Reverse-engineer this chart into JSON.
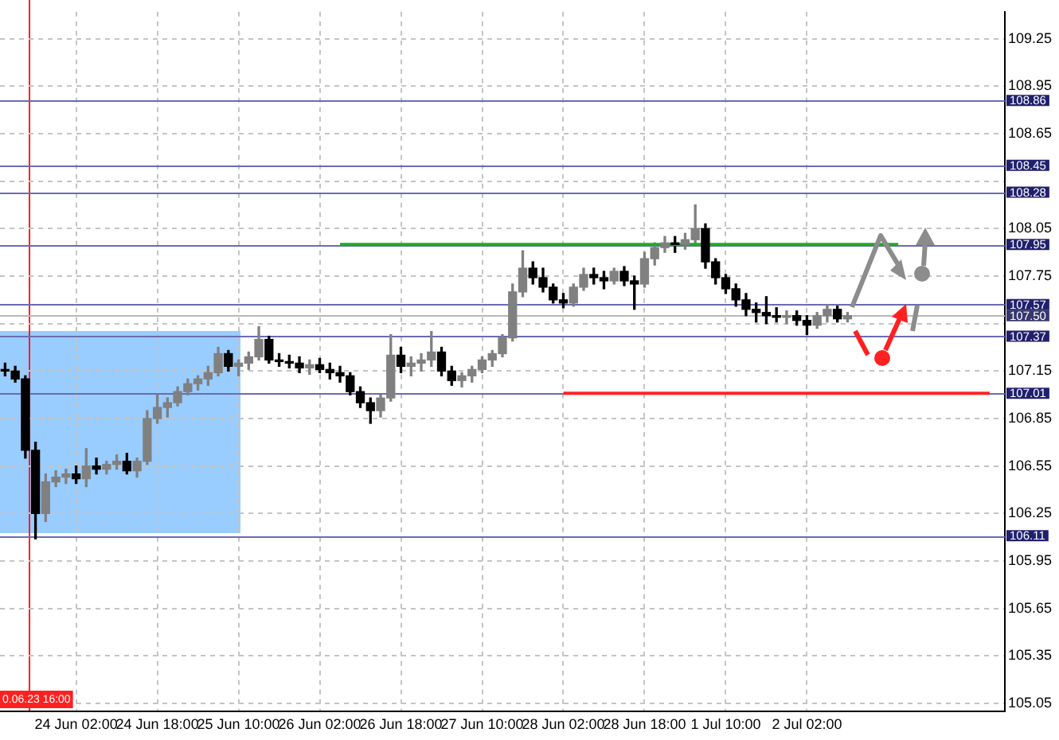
{
  "chart_data": {
    "type": "candlestick",
    "categories": [
      null,
      null,
      null,
      null,
      null,
      null,
      null,
      "24 Jun 02:00",
      null,
      null,
      null,
      null,
      null,
      null,
      null,
      "24 Jun 18:00",
      null,
      null,
      null,
      null,
      null,
      null,
      null,
      "25 Jun 10:00",
      null,
      null,
      null,
      null,
      null,
      null,
      null,
      "26 Jun 02:00",
      null,
      null,
      null,
      null,
      null,
      null,
      null,
      "26 Jun 18:00",
      null,
      null,
      null,
      null,
      null,
      null,
      null,
      "27 Jun 10:00",
      null,
      null,
      null,
      null,
      null,
      null,
      null,
      "28 Jun 02:00",
      null,
      null,
      null,
      null,
      null,
      null,
      null,
      "28 Jun 18:00",
      null,
      null,
      null,
      null,
      null,
      null,
      null,
      "1 Jul 10:00",
      null,
      null,
      null,
      null,
      null,
      null,
      null,
      "2 Jul 02:00",
      null,
      null,
      null,
      null,
      null,
      null,
      null,
      null,
      null,
      null,
      null,
      null,
      null,
      null,
      null,
      null,
      null,
      null,
      null
    ],
    "colors": [
      "#000000",
      "#000000",
      "#000000",
      "#000000",
      "#808080",
      "#808080",
      "#808080",
      "#000000",
      "#808080",
      "#000000",
      "#808080",
      "#808080",
      "#000000",
      "#808080",
      "#808080",
      "#808080",
      "#808080",
      "#808080",
      "#808080",
      "#808080",
      "#808080",
      "#808080",
      "#000000",
      "#808080",
      "#808080",
      "#808080",
      "#000000",
      "#000000",
      "#000000",
      "#000000",
      "#808080",
      "#000000",
      "#000000",
      "#000000",
      "#000000",
      "#000000",
      "#000000",
      "#808080",
      "#808080",
      "#000000",
      "#808080",
      "#808080",
      "#808080",
      "#000000",
      "#000000",
      "#808080",
      "#808080",
      "#808080",
      "#808080",
      "#808080",
      "#808080",
      "#808080",
      "#000000",
      "#000000",
      "#000000",
      "#000000",
      "#808080",
      "#808080",
      "#000000",
      "#000000",
      "#808080",
      "#000000",
      "#000000",
      "#808080",
      "#808080",
      "#808080",
      "#000000",
      "#808080",
      "#808080",
      "#000000",
      "#000000",
      "#000000",
      "#000000",
      "#000000",
      "#000000",
      "#000000",
      "#000000",
      "#808080",
      "#000000",
      "#000000",
      "#808080",
      "#808080",
      "#000000",
      "#808080",
      null,
      null,
      null,
      null,
      null,
      null,
      null,
      null,
      null,
      null,
      null,
      null,
      null,
      null,
      null
    ],
    "ohlc": [
      [
        107.16,
        107.2,
        107.12,
        107.15
      ],
      [
        107.15,
        107.18,
        107.08,
        107.1
      ],
      [
        107.1,
        107.12,
        106.6,
        106.65
      ],
      [
        106.65,
        106.7,
        106.09,
        106.25
      ],
      [
        106.25,
        106.5,
        106.2,
        106.45
      ],
      [
        106.45,
        106.52,
        106.42,
        106.48
      ],
      [
        106.48,
        106.53,
        106.44,
        106.5
      ],
      [
        106.5,
        106.55,
        106.44,
        106.47
      ],
      [
        106.47,
        106.66,
        106.42,
        106.55
      ],
      [
        106.55,
        106.6,
        106.5,
        106.53
      ],
      [
        106.53,
        106.58,
        106.5,
        106.56
      ],
      [
        106.56,
        106.62,
        106.53,
        106.58
      ],
      [
        106.58,
        106.63,
        106.5,
        106.52
      ],
      [
        106.52,
        106.6,
        106.48,
        106.58
      ],
      [
        106.58,
        106.9,
        106.56,
        106.85
      ],
      [
        106.85,
        107.0,
        106.82,
        106.92
      ],
      [
        106.92,
        106.98,
        106.86,
        106.95
      ],
      [
        106.95,
        107.05,
        106.93,
        107.02
      ],
      [
        107.02,
        107.1,
        107.0,
        107.07
      ],
      [
        107.07,
        107.12,
        107.03,
        107.1
      ],
      [
        107.1,
        107.18,
        107.06,
        107.14
      ],
      [
        107.14,
        107.3,
        107.12,
        107.26
      ],
      [
        107.26,
        107.28,
        107.15,
        107.18
      ],
      [
        107.18,
        107.22,
        107.12,
        107.2
      ],
      [
        107.2,
        107.27,
        107.16,
        107.24
      ],
      [
        107.24,
        107.43,
        107.22,
        107.35
      ],
      [
        107.35,
        107.37,
        107.2,
        107.22
      ],
      [
        107.22,
        107.26,
        107.18,
        107.21
      ],
      [
        107.21,
        107.25,
        107.17,
        107.2
      ],
      [
        107.2,
        107.24,
        107.14,
        107.17
      ],
      [
        107.17,
        107.22,
        107.13,
        107.19
      ],
      [
        107.19,
        107.23,
        107.14,
        107.16
      ],
      [
        107.16,
        107.2,
        107.1,
        107.14
      ],
      [
        107.14,
        107.18,
        107.08,
        107.12
      ],
      [
        107.12,
        107.14,
        107.0,
        107.02
      ],
      [
        107.02,
        107.05,
        106.92,
        106.95
      ],
      [
        106.95,
        106.98,
        106.82,
        106.9
      ],
      [
        106.9,
        107.0,
        106.86,
        106.98
      ],
      [
        106.98,
        107.38,
        106.96,
        107.25
      ],
      [
        107.25,
        107.3,
        107.14,
        107.18
      ],
      [
        107.18,
        107.24,
        107.12,
        107.2
      ],
      [
        107.2,
        107.26,
        107.15,
        107.22
      ],
      [
        107.22,
        107.4,
        107.18,
        107.27
      ],
      [
        107.27,
        107.3,
        107.12,
        107.15
      ],
      [
        107.15,
        107.18,
        107.06,
        107.09
      ],
      [
        107.09,
        107.14,
        107.05,
        107.12
      ],
      [
        107.12,
        107.18,
        107.08,
        107.16
      ],
      [
        107.16,
        107.24,
        107.14,
        107.22
      ],
      [
        107.22,
        107.28,
        107.18,
        107.26
      ],
      [
        107.26,
        107.38,
        107.24,
        107.36
      ],
      [
        107.36,
        107.7,
        107.34,
        107.65
      ],
      [
        107.65,
        107.91,
        107.62,
        107.8
      ],
      [
        107.8,
        107.84,
        107.7,
        107.74
      ],
      [
        107.74,
        107.8,
        107.65,
        107.68
      ],
      [
        107.68,
        107.7,
        107.58,
        107.6
      ],
      [
        107.6,
        107.64,
        107.55,
        107.58
      ],
      [
        107.58,
        107.7,
        107.56,
        107.68
      ],
      [
        107.68,
        107.8,
        107.66,
        107.76
      ],
      [
        107.76,
        107.8,
        107.7,
        107.74
      ],
      [
        107.74,
        107.78,
        107.67,
        107.72
      ],
      [
        107.72,
        107.8,
        107.7,
        107.78
      ],
      [
        107.78,
        107.81,
        107.69,
        107.72
      ],
      [
        107.72,
        107.75,
        107.54,
        107.7
      ],
      [
        107.7,
        107.9,
        107.68,
        107.86
      ],
      [
        107.86,
        107.96,
        107.82,
        107.93
      ],
      [
        107.93,
        108.0,
        107.9,
        107.96
      ],
      [
        107.96,
        108.0,
        107.9,
        107.95
      ],
      [
        107.95,
        108.02,
        107.92,
        107.98
      ],
      [
        107.98,
        108.2,
        107.95,
        108.05
      ],
      [
        108.05,
        108.08,
        107.8,
        107.84
      ],
      [
        107.84,
        107.86,
        107.7,
        107.74
      ],
      [
        107.74,
        107.76,
        107.64,
        107.67
      ],
      [
        107.67,
        107.7,
        107.56,
        107.6
      ],
      [
        107.6,
        107.64,
        107.5,
        107.54
      ],
      [
        107.54,
        107.58,
        107.46,
        107.52
      ],
      [
        107.52,
        107.62,
        107.45,
        107.5
      ],
      [
        107.5,
        107.55,
        107.46,
        107.49
      ],
      [
        107.49,
        107.53,
        107.45,
        107.5
      ],
      [
        107.5,
        107.53,
        107.44,
        107.47
      ],
      [
        107.47,
        107.5,
        107.38,
        107.44
      ],
      [
        107.44,
        107.52,
        107.42,
        107.5
      ],
      [
        107.5,
        107.57,
        107.46,
        107.54
      ],
      [
        107.54,
        107.56,
        107.46,
        107.48
      ],
      [
        107.48,
        107.52,
        107.46,
        107.5
      ],
      null,
      null,
      null,
      null,
      null,
      null,
      null,
      null,
      null,
      null,
      null,
      null,
      null,
      null,
      null
    ],
    "series": [
      {
        "type": "line",
        "color": "#22aa22",
        "values": [
          null,
          null,
          null,
          null,
          null,
          null,
          null,
          null,
          null,
          null,
          null,
          null,
          null,
          null,
          null,
          null,
          null,
          null,
          null,
          null,
          null,
          null,
          null,
          null,
          null,
          null,
          null,
          null,
          null,
          null,
          null,
          null,
          null,
          107.95,
          107.95,
          107.95,
          107.95,
          107.95,
          107.95,
          107.95,
          107.95,
          107.95,
          107.95,
          107.95,
          107.95,
          107.95,
          107.95,
          107.95,
          107.95,
          107.95,
          107.95,
          107.95,
          107.95,
          107.95,
          107.95,
          107.95,
          107.95,
          107.95,
          107.95,
          107.95,
          107.95,
          107.95,
          107.95,
          107.95,
          107.95,
          107.95,
          107.95,
          107.95,
          107.95,
          107.95,
          107.95,
          107.95,
          107.95,
          107.95,
          107.95,
          107.95,
          107.95,
          107.95,
          107.95,
          107.95,
          107.95,
          107.95,
          107.95,
          107.95,
          107.95,
          107.95,
          107.95,
          107.95,
          107.95,
          null,
          null,
          null,
          null,
          null,
          null,
          null,
          null,
          null,
          null
        ]
      },
      {
        "type": "line",
        "color": "#ff2222",
        "values": [
          null,
          null,
          null,
          null,
          null,
          null,
          null,
          null,
          null,
          null,
          null,
          null,
          null,
          null,
          null,
          null,
          null,
          null,
          null,
          null,
          null,
          null,
          null,
          null,
          null,
          null,
          null,
          null,
          null,
          null,
          null,
          null,
          null,
          null,
          null,
          null,
          null,
          null,
          null,
          null,
          null,
          null,
          null,
          null,
          null,
          null,
          null,
          null,
          null,
          null,
          null,
          null,
          null,
          null,
          null,
          107.01,
          107.01,
          107.01,
          107.01,
          107.01,
          107.01,
          107.01,
          107.01,
          107.01,
          107.01,
          107.01,
          107.01,
          107.01,
          107.01,
          107.01,
          107.01,
          107.01,
          107.01,
          107.01,
          107.01,
          107.01,
          107.01,
          107.01,
          107.01,
          107.01,
          107.01,
          107.01,
          107.01,
          107.01,
          107.01,
          107.01,
          107.01,
          107.01,
          107.01,
          107.01,
          107.01,
          107.01,
          107.01,
          107.01,
          107.01,
          107.01,
          107.01,
          107.01,
          null
        ]
      }
    ],
    "ylim": [
      105.0,
      109.42
    ],
    "yticks": [
      109.25,
      108.95,
      108.65,
      {
        "value": 108.35,
        "label": null
      },
      108.05,
      107.75,
      {
        "value": 107.45,
        "label": null
      },
      107.15,
      106.85,
      106.55,
      106.25,
      105.95,
      105.65,
      105.35,
      105.05
    ],
    "ref_lines": [
      {
        "axis": "y",
        "value": 108.86,
        "label": "108.86",
        "color": "#6b6bb5"
      },
      {
        "axis": "y",
        "value": 108.45,
        "label": "108.45",
        "color": "#6b6bb5"
      },
      {
        "axis": "y",
        "value": 108.28,
        "label": "108.28",
        "color": "#6b6bb5"
      },
      {
        "axis": "y",
        "value": 107.95,
        "label": "107.95",
        "color": "#6b6bb5"
      },
      {
        "axis": "y",
        "value": 107.57,
        "label": "107.57",
        "color": "#6b6bb5"
      },
      {
        "axis": "y",
        "value": 107.5,
        "label": "107.50",
        "color": "#b8b8b8"
      },
      {
        "axis": "y",
        "value": 107.37,
        "label": "107.37",
        "color": "#6b6bb5"
      },
      {
        "axis": "y",
        "value": 107.01,
        "label": "107.01",
        "color": "#6b6bb5"
      },
      {
        "axis": "y",
        "value": 106.11,
        "label": "106.11",
        "color": "#6b6bb5"
      }
    ],
    "annotations": [
      "0.06.23 16:00"
    ],
    "grid": true,
    "legend": false
  }
}
